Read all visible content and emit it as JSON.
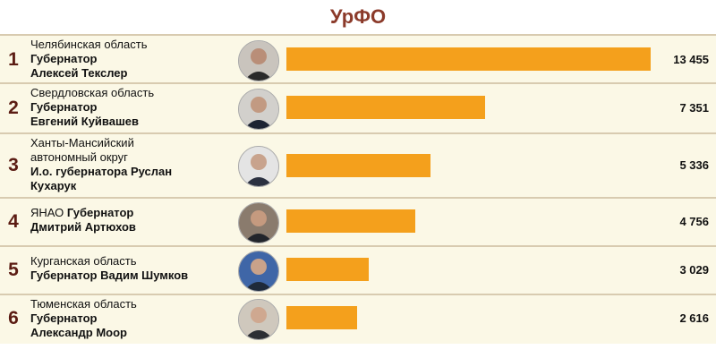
{
  "header": {
    "title": "УрФО"
  },
  "chart_data": {
    "type": "bar",
    "orientation": "horizontal",
    "title": "УрФО",
    "categories": [
      "1",
      "2",
      "3",
      "4",
      "5",
      "6"
    ],
    "values": [
      13455,
      7351,
      5336,
      4756,
      3029,
      2616
    ],
    "value_labels": [
      "13 455",
      "7 351",
      "5 336",
      "4 756",
      "3 029",
      "2 616"
    ],
    "bar_color": "#f4a01c",
    "xlim": [
      0,
      13455
    ]
  },
  "rows": [
    {
      "rank": "1",
      "region": "Челябинская область",
      "position": "Губернатор",
      "name": "Алексей Текслер",
      "value_label": "13 455"
    },
    {
      "rank": "2",
      "region": "Свердловская область",
      "position": "Губернатор",
      "name": "Евгений Куйвашев",
      "value_label": "7 351"
    },
    {
      "rank": "3",
      "region": "Ханты-Мансийский автономный округ",
      "position": "И.о. губернатора Руслан",
      "name": "Кухарук",
      "value_label": "5 336"
    },
    {
      "rank": "4",
      "region": "ЯНАО",
      "position": "Губернатор",
      "name": "Дмитрий Артюхов",
      "value_label": "4 756"
    },
    {
      "rank": "5",
      "region": "Курганская область",
      "position": "Губернатор Вадим Шумков",
      "name": "",
      "value_label": "3 029"
    },
    {
      "rank": "6",
      "region": "Тюменская область",
      "position": "Губернатор",
      "name": "Александр Моор",
      "value_label": "2 616"
    }
  ],
  "colors": {
    "rank_text": "#5b1c13",
    "title_text": "#8b3a2a",
    "row_bg": "#fbf8e6"
  }
}
